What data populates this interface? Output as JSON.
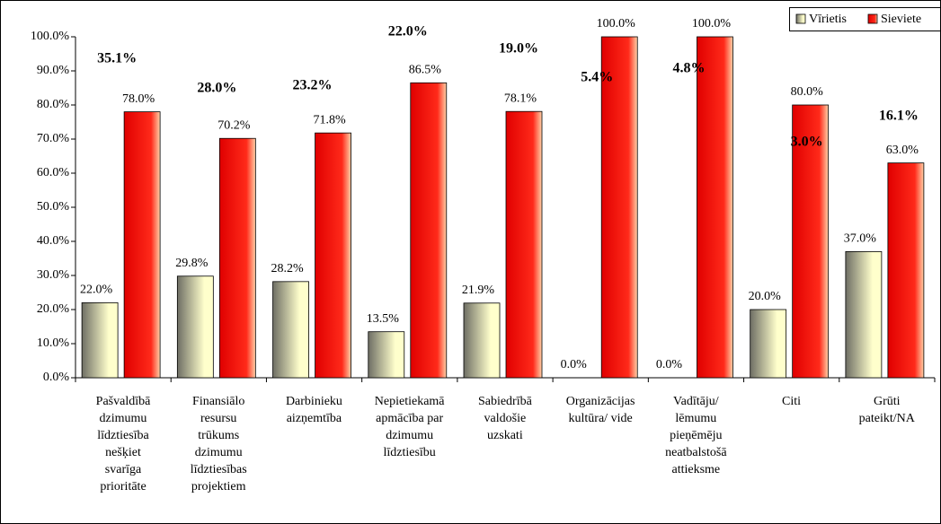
{
  "chart_data": {
    "type": "bar",
    "categories": [
      "Pašvaldībā\ndzimumu\nlīdztiesība\nnešķiet\nsvarīga\nprioritāte",
      "Finansiālo\nresursu\ntrūkums\ndzimumu\nlīdztiesības\nprojektiem",
      "Darbinieku\naizņemtība",
      "Nepietiekamā\napmācība par\ndzimumu\nlīdztiesību",
      "Sabiedrībā\nvaldošie\nuzskati",
      "Organizācijas\nkultūra/ vide",
      "Vadītāju/\nlēmumu\npieņēmēju\nneatbalstošā\nattieksme",
      "Citi",
      "Grūti\npateikt/NA"
    ],
    "series": [
      {
        "name": "Vīrietis",
        "color": "#ffffcc",
        "values": [
          22.0,
          29.8,
          28.2,
          13.5,
          21.9,
          0.0,
          0.0,
          20.0,
          37.0
        ],
        "value_labels": [
          "22.0%",
          "29.8%",
          "28.2%",
          "13.5%",
          "21.9%",
          "0.0%",
          "0.0%",
          "20.0%",
          "37.0%"
        ]
      },
      {
        "name": "Sieviete",
        "color": "#ff2a1a",
        "values": [
          78.0,
          70.2,
          71.8,
          86.5,
          78.1,
          100.0,
          100.0,
          80.0,
          63.0
        ],
        "value_labels": [
          "78.0%",
          "70.2%",
          "71.8%",
          "86.5%",
          "78.1%",
          "100.0%",
          "100.0%",
          "80.0%",
          "63.0%"
        ]
      }
    ],
    "annotations": [
      "35.1%",
      "28.0%",
      "23.2%",
      "22.0%",
      "19.0%",
      "5.4%",
      "4.8%",
      "3.0%",
      "16.1%"
    ],
    "ylim": [
      0,
      100
    ],
    "yticks": [
      {
        "value": 0,
        "label": "0.0%"
      },
      {
        "value": 10,
        "label": "10.0%"
      },
      {
        "value": 20,
        "label": "20.0%"
      },
      {
        "value": 30,
        "label": "30.0%"
      },
      {
        "value": 40,
        "label": "40.0%"
      },
      {
        "value": 50,
        "label": "50.0%"
      },
      {
        "value": 60,
        "label": "60.0%"
      },
      {
        "value": 70,
        "label": "70.0%"
      },
      {
        "value": 80,
        "label": "80.0%"
      },
      {
        "value": 90,
        "label": "90.0%"
      },
      {
        "value": 100,
        "label": "100.0%"
      }
    ],
    "grid": false,
    "legend": "top-right"
  }
}
